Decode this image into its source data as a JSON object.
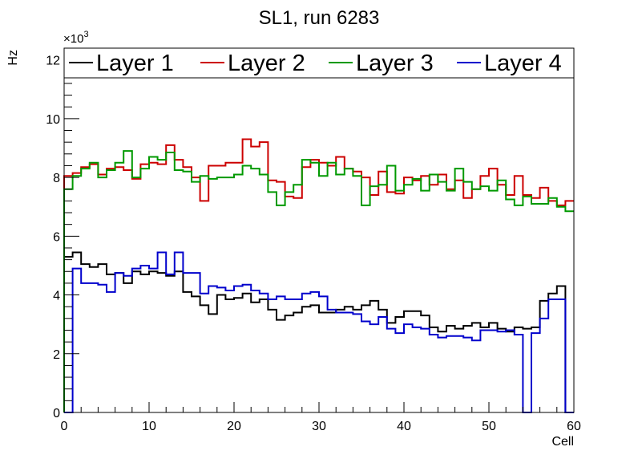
{
  "chart_data": {
    "type": "line",
    "style": "step-histogram",
    "title": "SL1, run 6283",
    "xlabel": "Cell",
    "ylabel": "Hz",
    "y_exponent_label": "×10",
    "y_exponent_power": "3",
    "xlim": [
      0,
      60
    ],
    "ylim": [
      0,
      12.4
    ],
    "x_ticks": [
      0,
      10,
      20,
      30,
      40,
      50,
      60
    ],
    "x_tick_labels": [
      "0",
      "10",
      "20",
      "30",
      "40",
      "50",
      "60"
    ],
    "y_ticks": [
      0,
      2,
      4,
      6,
      8,
      10,
      12
    ],
    "y_tick_labels": [
      "0",
      "2",
      "4",
      "6",
      "8",
      "10",
      "12"
    ],
    "bin_edges_start": 0,
    "bin_width": 1,
    "legend_position": "top",
    "series": [
      {
        "name": "Layer 1",
        "color": "#000000",
        "values": [
          5.3,
          5.45,
          5.05,
          4.95,
          5.05,
          4.7,
          4.75,
          4.4,
          4.8,
          4.7,
          4.8,
          4.75,
          4.65,
          4.8,
          4.1,
          3.95,
          3.65,
          3.35,
          4.0,
          3.85,
          3.9,
          4.05,
          3.75,
          3.85,
          3.5,
          3.15,
          3.3,
          3.4,
          3.6,
          3.65,
          3.4,
          3.4,
          3.5,
          3.6,
          3.5,
          3.65,
          3.8,
          3.5,
          3.05,
          3.25,
          3.45,
          3.45,
          3.3,
          2.9,
          2.75,
          2.95,
          2.85,
          2.95,
          3.05,
          2.9,
          3.05,
          2.85,
          2.75,
          2.9,
          2.85,
          2.9,
          3.8,
          4.05,
          4.3,
          0.0
        ]
      },
      {
        "name": "Layer 2",
        "color": "#cc0000",
        "values": [
          8.05,
          8.15,
          8.35,
          8.45,
          8.1,
          8.3,
          8.35,
          8.25,
          7.95,
          8.45,
          8.5,
          8.45,
          9.1,
          8.6,
          8.35,
          8.0,
          7.2,
          8.4,
          8.4,
          8.5,
          8.5,
          9.3,
          9.05,
          9.2,
          7.9,
          7.85,
          7.35,
          7.3,
          8.35,
          8.6,
          8.5,
          8.4,
          8.7,
          8.3,
          8.2,
          8.0,
          7.4,
          8.2,
          7.5,
          7.45,
          8.0,
          7.9,
          8.05,
          7.75,
          8.1,
          7.6,
          7.9,
          7.3,
          7.6,
          8.05,
          8.3,
          7.75,
          7.4,
          8.05,
          7.4,
          7.3,
          7.65,
          7.2,
          7.05,
          7.2
        ]
      },
      {
        "name": "Layer 3",
        "color": "#009900",
        "values": [
          7.6,
          8.05,
          8.3,
          8.5,
          8.0,
          8.25,
          8.5,
          8.9,
          8.0,
          8.3,
          8.7,
          8.6,
          8.85,
          8.25,
          8.2,
          7.85,
          8.05,
          7.95,
          8.0,
          8.0,
          8.1,
          8.4,
          8.3,
          8.1,
          7.5,
          7.05,
          7.5,
          7.75,
          8.6,
          8.5,
          8.05,
          8.5,
          8.1,
          8.3,
          8.05,
          7.05,
          7.7,
          7.75,
          8.4,
          7.55,
          7.75,
          7.95,
          7.55,
          8.1,
          7.85,
          7.55,
          8.3,
          7.85,
          7.6,
          7.7,
          7.55,
          7.9,
          7.25,
          7.05,
          7.35,
          7.1,
          7.1,
          7.3,
          7.0,
          6.85
        ]
      },
      {
        "name": "Layer 4",
        "color": "#0000cc",
        "values": [
          0.0,
          4.9,
          4.4,
          4.4,
          4.35,
          4.1,
          4.75,
          4.65,
          4.9,
          5.0,
          4.9,
          5.45,
          4.7,
          5.45,
          4.75,
          4.75,
          4.05,
          4.3,
          4.25,
          4.15,
          4.3,
          4.35,
          4.15,
          4.05,
          3.85,
          3.95,
          3.85,
          3.85,
          4.05,
          4.1,
          3.95,
          3.5,
          3.4,
          3.4,
          3.35,
          3.1,
          3.0,
          3.25,
          2.85,
          2.7,
          3.0,
          2.9,
          2.85,
          2.65,
          2.55,
          2.6,
          2.6,
          2.55,
          2.45,
          2.8,
          2.8,
          2.75,
          2.8,
          2.65,
          0.0,
          2.7,
          3.2,
          3.85,
          3.85,
          0.0
        ]
      }
    ]
  }
}
